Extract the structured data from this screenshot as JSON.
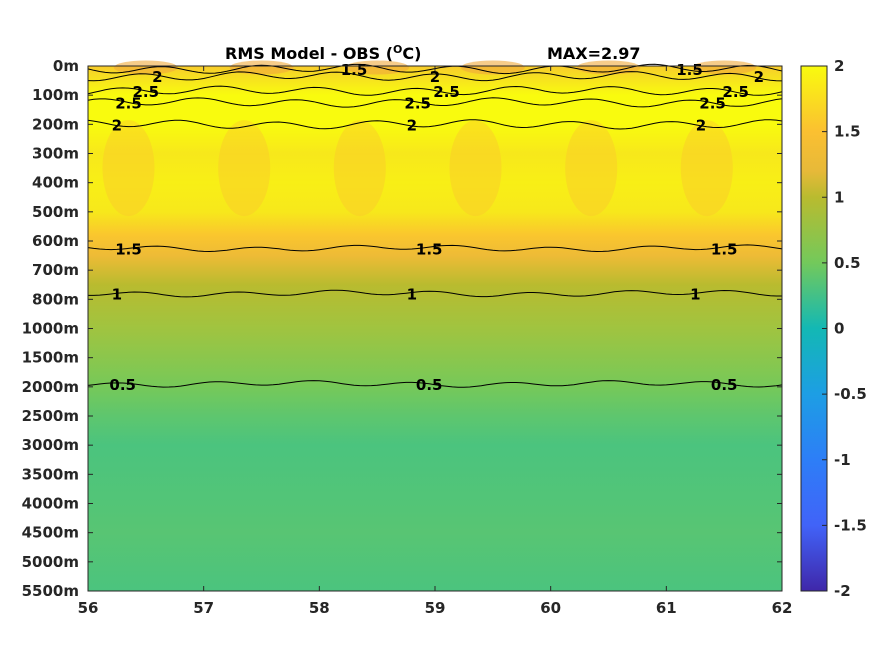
{
  "chart_data": {
    "type": "heatmap",
    "title_main": "RMS Model - OBS (",
    "title_sup": "O",
    "title_tail": "C)",
    "max_label": "MAX=2.97",
    "xlim": [
      56,
      62
    ],
    "x_ticks": [
      "56",
      "57",
      "58",
      "59",
      "60",
      "61",
      "62"
    ],
    "y_ticks": [
      "0m",
      "100m",
      "200m",
      "300m",
      "400m",
      "500m",
      "600m",
      "700m",
      "800m",
      "1000m",
      "1500m",
      "2000m",
      "2500m",
      "3000m",
      "3500m",
      "4000m",
      "4500m",
      "5000m",
      "5500m"
    ],
    "colorbar": {
      "range": [
        -2,
        2
      ],
      "ticks": [
        "2",
        "1.5",
        "1",
        "0.5",
        "0",
        "-0.5",
        "-1",
        "-1.5",
        "-2"
      ]
    },
    "depth_profile": [
      {
        "level": 0,
        "value": 1.6
      },
      {
        "level": 0.3,
        "value": 1.75
      },
      {
        "level": 1,
        "value": 2.3
      },
      {
        "level": 1.5,
        "value": 2.3
      },
      {
        "level": 2,
        "value": 2.0
      },
      {
        "level": 3,
        "value": 1.85
      },
      {
        "level": 4,
        "value": 1.9
      },
      {
        "level": 5,
        "value": 1.85
      },
      {
        "level": 5.8,
        "value": 1.55
      },
      {
        "level": 6.5,
        "value": 1.3
      },
      {
        "level": 7.5,
        "value": 1.0
      },
      {
        "level": 9,
        "value": 0.82
      },
      {
        "level": 11,
        "value": 0.52
      },
      {
        "level": 12,
        "value": 0.42
      },
      {
        "level": 13,
        "value": 0.35
      },
      {
        "level": 15,
        "value": 0.38
      },
      {
        "level": 16,
        "value": 0.4
      },
      {
        "level": 18,
        "value": 0.35
      }
    ],
    "contours": [
      {
        "level_label": "1.5",
        "depth_level": 0.1,
        "labels": [
          {
            "x": 58.3,
            "text": "1.5"
          },
          {
            "x": 61.2,
            "text": "1.5"
          }
        ]
      },
      {
        "level_label": "2",
        "depth_level": 0.35,
        "labels": [
          {
            "x": 56.6,
            "text": "2"
          },
          {
            "x": 59.0,
            "text": "2"
          },
          {
            "x": 61.8,
            "text": "2"
          }
        ]
      },
      {
        "level_label": "2.5",
        "depth_level": 0.85,
        "labels": [
          {
            "x": 56.5,
            "text": "2.5"
          },
          {
            "x": 59.1,
            "text": "2.5"
          },
          {
            "x": 61.6,
            "text": "2.5"
          }
        ]
      },
      {
        "level_label": "2.5",
        "depth_level": 1.25,
        "labels": [
          {
            "x": 56.35,
            "text": "2.5"
          },
          {
            "x": 58.85,
            "text": "2.5"
          },
          {
            "x": 61.4,
            "text": "2.5"
          }
        ]
      },
      {
        "level_label": "2",
        "depth_level": 2.0,
        "labels": [
          {
            "x": 56.25,
            "text": "2"
          },
          {
            "x": 58.8,
            "text": "2"
          },
          {
            "x": 61.3,
            "text": "2"
          }
        ]
      },
      {
        "level_label": "1.5",
        "depth_level": 6.25,
        "labels": [
          {
            "x": 56.35,
            "text": "1.5"
          },
          {
            "x": 58.95,
            "text": "1.5"
          },
          {
            "x": 61.5,
            "text": "1.5"
          }
        ]
      },
      {
        "level_label": "1",
        "depth_level": 7.8,
        "labels": [
          {
            "x": 56.25,
            "text": "1"
          },
          {
            "x": 58.8,
            "text": "1"
          },
          {
            "x": 61.25,
            "text": "1"
          }
        ]
      },
      {
        "level_label": "0.5",
        "depth_level": 10.9,
        "labels": [
          {
            "x": 56.3,
            "text": "0.5"
          },
          {
            "x": 58.95,
            "text": "0.5"
          },
          {
            "x": 61.5,
            "text": "0.5"
          }
        ]
      }
    ]
  }
}
